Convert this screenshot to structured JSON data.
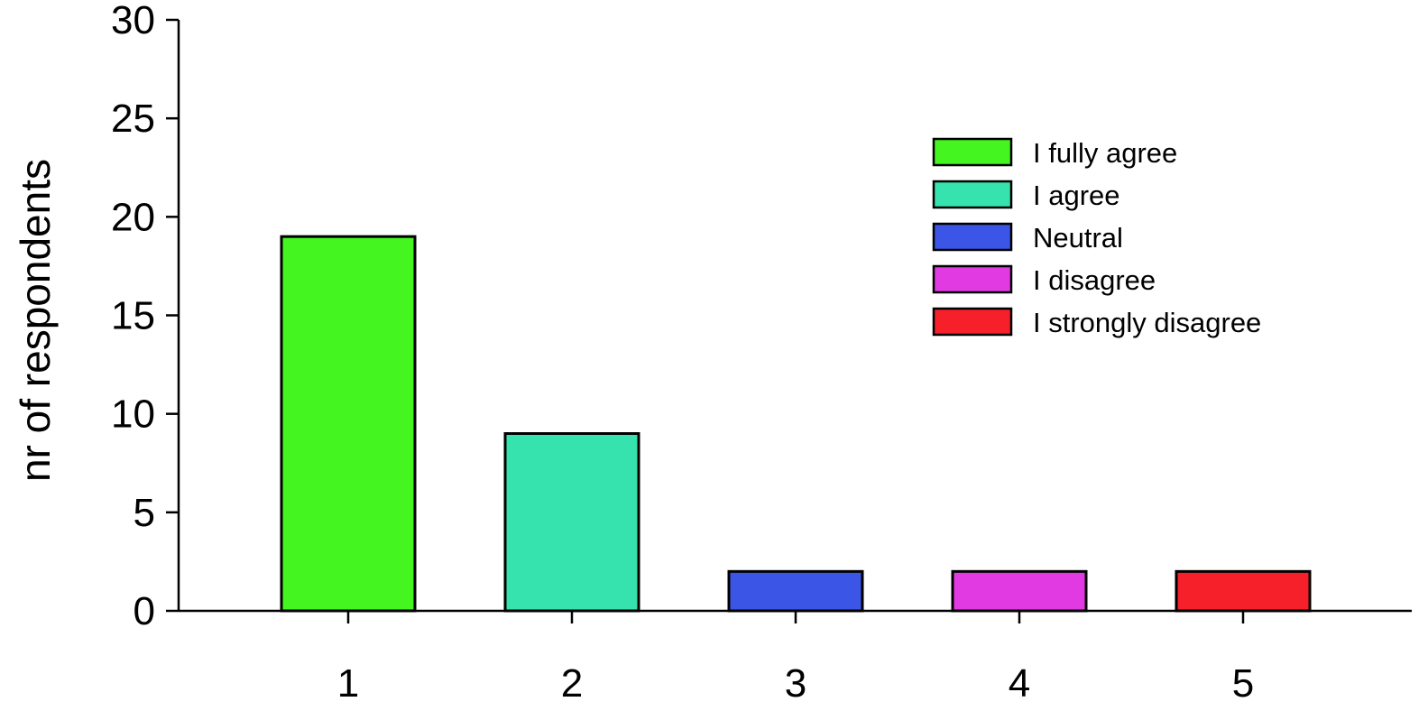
{
  "chart_data": {
    "type": "bar",
    "title": "",
    "xlabel": "",
    "ylabel": "nr of respondents",
    "categories": [
      "1",
      "2",
      "3",
      "4",
      "5"
    ],
    "values": [
      19,
      9,
      2,
      2,
      2
    ],
    "colors": [
      "#44f520",
      "#36e2ad",
      "#3b55e6",
      "#e23ae2",
      "#f5202a"
    ],
    "legend": {
      "position": "right",
      "entries": [
        {
          "label": "I fully agree",
          "color": "#44f520"
        },
        {
          "label": "I agree",
          "color": "#36e2ad"
        },
        {
          "label": "Neutral",
          "color": "#3b55e6"
        },
        {
          "label": "I disagree",
          "color": "#e23ae2"
        },
        {
          "label": "I strongly disagree",
          "color": "#f5202a"
        }
      ]
    },
    "ylim": [
      0,
      30
    ],
    "yticks": [
      "0",
      "5",
      "10",
      "15",
      "20",
      "25",
      "30"
    ],
    "grid": false
  }
}
